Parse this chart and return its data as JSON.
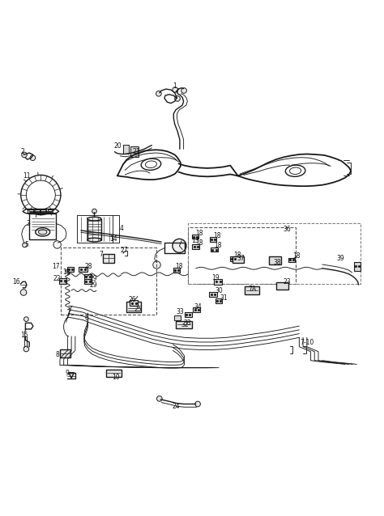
{
  "bg_color": "#ffffff",
  "line_color": "#1a1a1a",
  "label_color": "#111111",
  "figsize": [
    4.74,
    6.38
  ],
  "dpi": 100,
  "lw_main": 1.3,
  "lw_med": 1.0,
  "lw_thin": 0.65,
  "lw_pipe": 1.1
}
